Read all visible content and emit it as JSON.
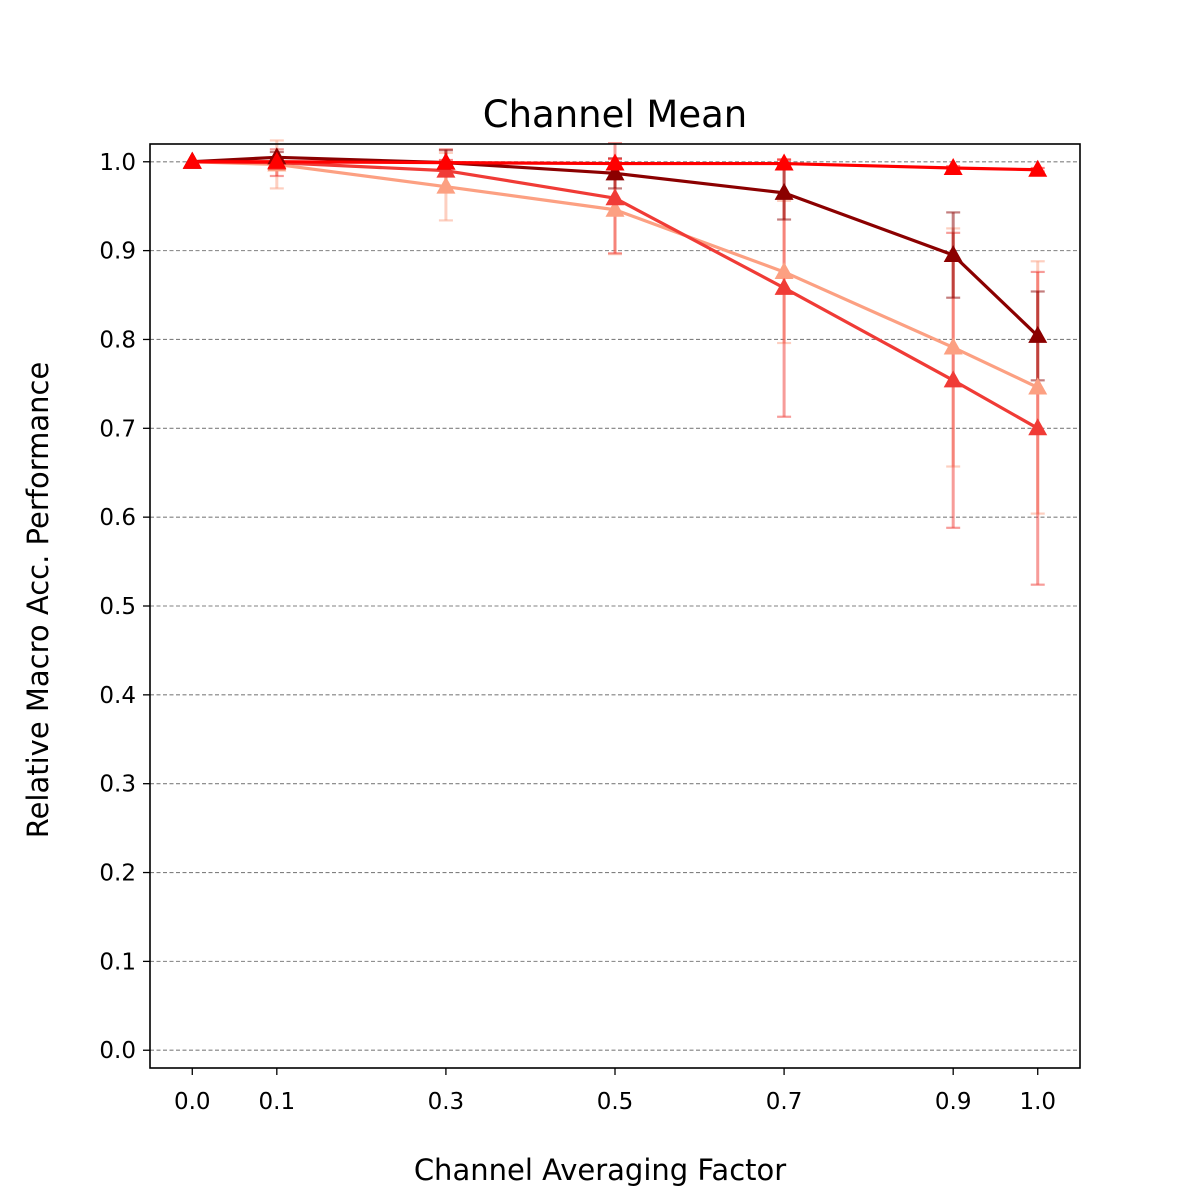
{
  "chart_data": {
    "type": "line",
    "title": "Channel Mean",
    "xlabel": "Channel Averaging Factor",
    "ylabel": "Relative Macro Acc. Performance",
    "x": [
      0.0,
      0.1,
      0.3,
      0.5,
      0.7,
      0.9,
      1.0
    ],
    "xticks": [
      "0.0",
      "0.1",
      "0.3",
      "0.5",
      "0.7",
      "0.9",
      "1.0"
    ],
    "yticks": [
      "0.0",
      "0.1",
      "0.2",
      "0.3",
      "0.4",
      "0.5",
      "0.6",
      "0.7",
      "0.8",
      "0.9",
      "1.0"
    ],
    "xlim": [
      -0.05,
      1.05
    ],
    "ylim": [
      -0.02,
      1.02
    ],
    "grid": "horizontal-dashed",
    "marker": "triangle",
    "series": [
      {
        "color": "#fca082",
        "values": [
          1.0,
          0.997,
          0.972,
          0.946,
          0.876,
          0.791,
          0.746
        ],
        "errors": [
          0.0,
          0.027,
          0.038,
          0.05,
          0.08,
          0.134,
          0.142
        ]
      },
      {
        "color": "#f03b36",
        "values": [
          1.0,
          0.999,
          0.99,
          0.959,
          0.858,
          0.754,
          0.7
        ],
        "errors": [
          0.0,
          0.015,
          0.024,
          0.062,
          0.145,
          0.166,
          0.176
        ]
      },
      {
        "color": "#8b0000",
        "values": [
          1.0,
          1.005,
          0.999,
          0.987,
          0.965,
          0.895,
          0.804
        ],
        "errors": [
          0.0,
          0.006,
          0.014,
          0.017,
          0.03,
          0.048,
          0.05
        ]
      },
      {
        "color": "#ff0000",
        "values": [
          1.0,
          1.0,
          0.999,
          0.998,
          0.998,
          0.993,
          0.991
        ],
        "errors": [
          0.0,
          0.003,
          0.003,
          0.005,
          0.004,
          0.002,
          0.002
        ]
      }
    ]
  }
}
